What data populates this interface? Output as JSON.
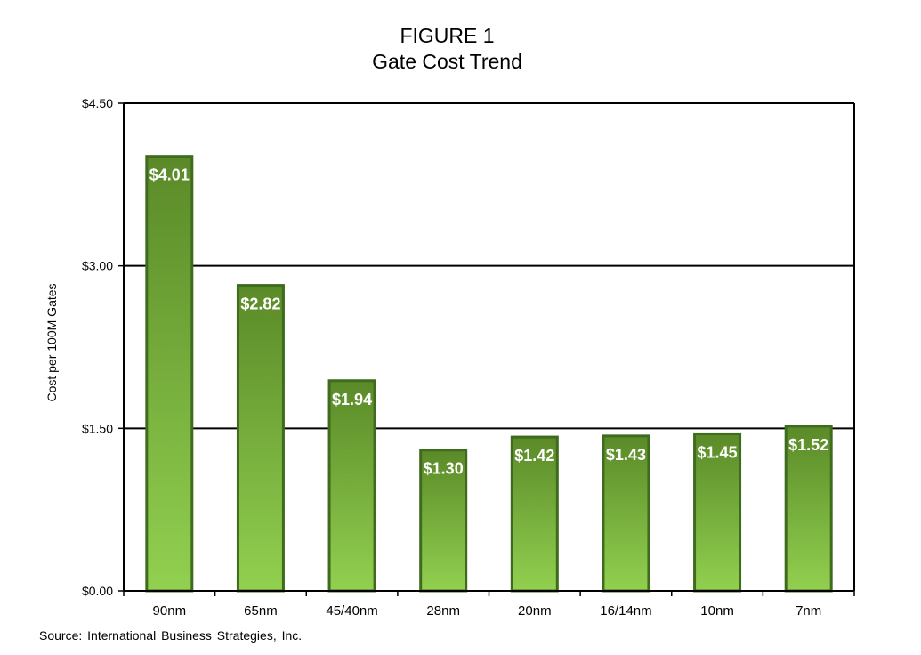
{
  "title": "FIGURE 1",
  "subtitle": "Gate Cost Trend",
  "source": "Source:  International  Business Strategies, Inc.",
  "chart_data": {
    "type": "bar",
    "title": "FIGURE 1",
    "subtitle": "Gate Cost Trend",
    "xlabel": "",
    "ylabel": "Cost per 100M Gates",
    "categories": [
      "90nm",
      "65nm",
      "45/40nm",
      "28nm",
      "20nm",
      "16/14nm",
      "10nm",
      "7nm"
    ],
    "values": [
      4.01,
      2.82,
      1.94,
      1.3,
      1.42,
      1.43,
      1.45,
      1.52
    ],
    "data_labels": [
      "$4.01",
      "$2.82",
      "$1.94",
      "$1.30",
      "$1.42",
      "$1.43",
      "$1.45",
      "$1.52"
    ],
    "ylim": [
      0,
      4.5
    ],
    "yticks": [
      0,
      1.5,
      3.0,
      4.5
    ],
    "ytick_labels": [
      "$0.00",
      "$1.50",
      "$3.00",
      "$4.50"
    ],
    "grid": true,
    "legend": "none",
    "colors": {
      "bar_top": "#5a8a28",
      "bar_bottom": "#92d050",
      "bar_border": "#3f6b1f"
    }
  }
}
